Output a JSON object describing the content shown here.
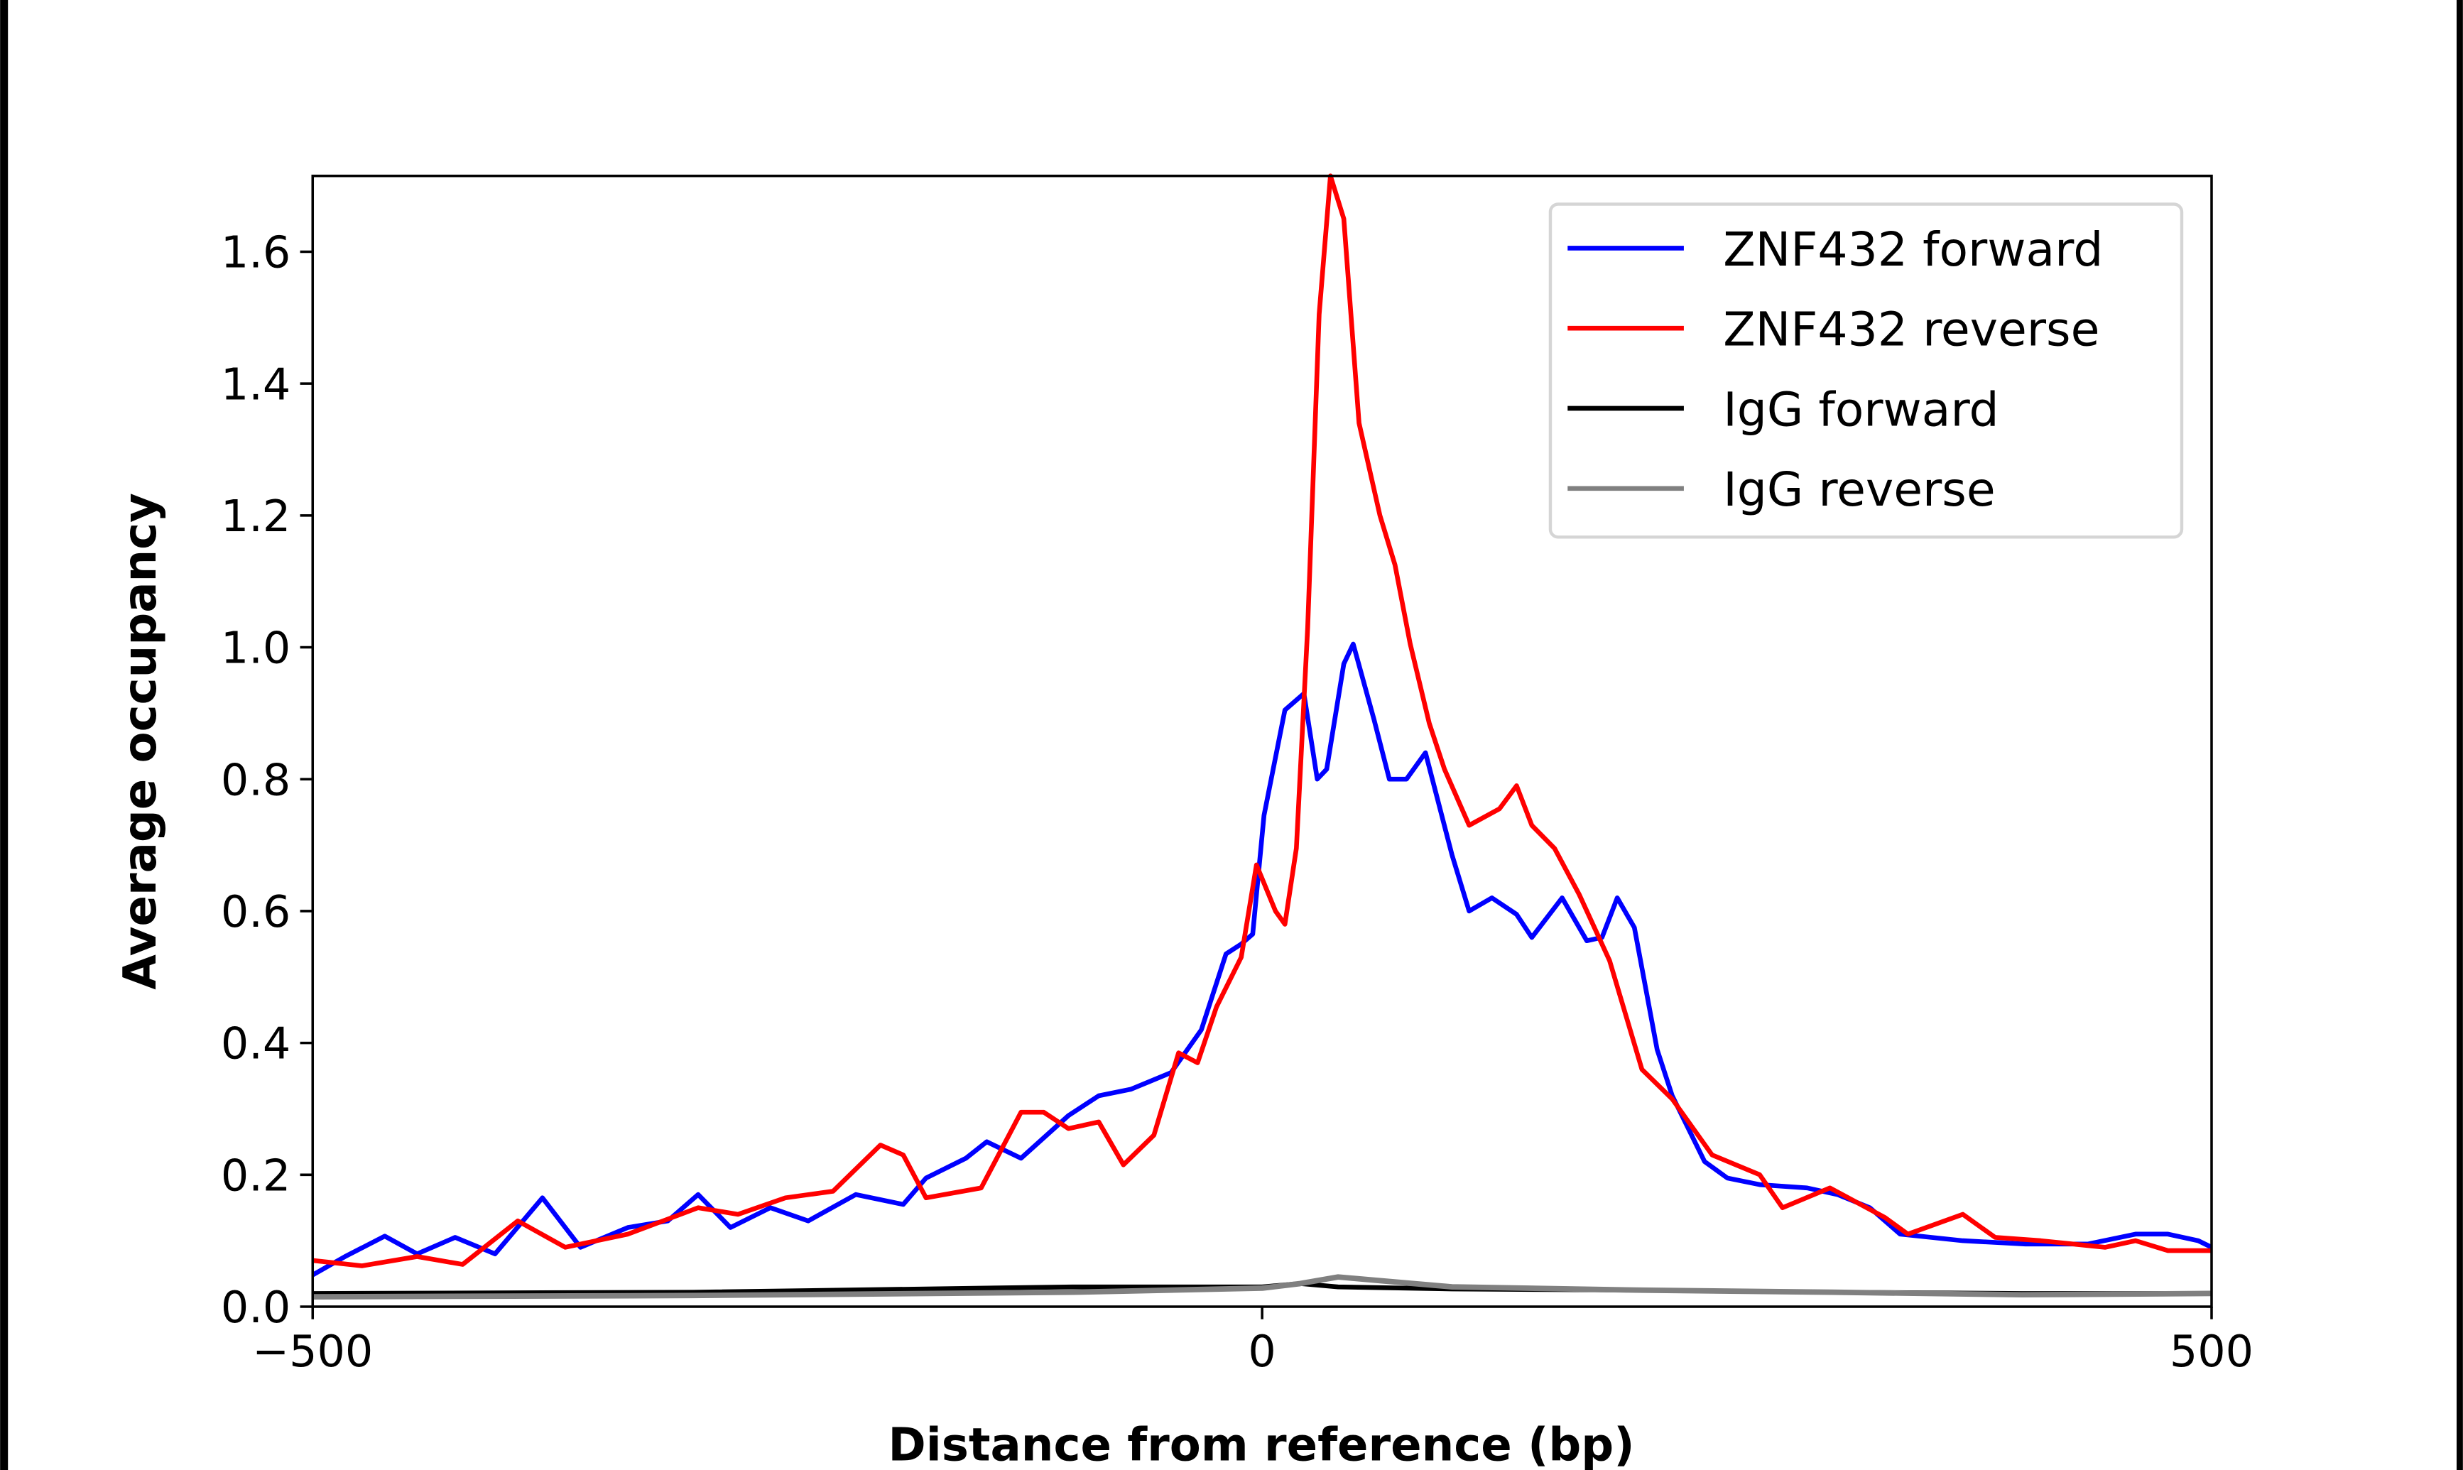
{
  "chart_data": {
    "type": "line",
    "title": "",
    "xlabel": "Distance from reference (bp)",
    "ylabel": "Average occupancy",
    "xlim": [
      -500,
      500
    ],
    "ylim": [
      0,
      1.715
    ],
    "xticks": [
      -500,
      0,
      500
    ],
    "xtick_labels": [
      "−500",
      "0",
      "500"
    ],
    "yticks": [
      0.0,
      0.2,
      0.4,
      0.6,
      0.8,
      1.0,
      1.2,
      1.4,
      1.6
    ],
    "ytick_labels": [
      "0.0",
      "0.2",
      "0.4",
      "0.6",
      "0.8",
      "1.0",
      "1.2",
      "1.4",
      "1.6"
    ],
    "grid": false,
    "legend_position": "top-right",
    "series": [
      {
        "name": "ZNF432 forward",
        "color": "#0000ff",
        "x": [
          -500,
          -483,
          -462,
          -445,
          -425,
          -404,
          -379,
          -359,
          -334,
          -313,
          -297,
          -280,
          -259,
          -239,
          -214,
          -189,
          -177,
          -156,
          -145,
          -127,
          -102,
          -86,
          -69,
          -48,
          -32,
          -19,
          -11,
          -5,
          1,
          12,
          22,
          29,
          34,
          43,
          48,
          59,
          67,
          76,
          86,
          100,
          109,
          121,
          134,
          142,
          158,
          171,
          179,
          187,
          196,
          208,
          216,
          233,
          245,
          262,
          287,
          303,
          320,
          336,
          369,
          402,
          435,
          460,
          477,
          493,
          500
        ],
        "y": [
          0.048,
          0.076,
          0.107,
          0.08,
          0.105,
          0.08,
          0.165,
          0.09,
          0.12,
          0.13,
          0.17,
          0.12,
          0.15,
          0.13,
          0.17,
          0.155,
          0.195,
          0.225,
          0.25,
          0.225,
          0.29,
          0.32,
          0.33,
          0.355,
          0.42,
          0.535,
          0.55,
          0.565,
          0.745,
          0.905,
          0.93,
          0.8,
          0.815,
          0.975,
          1.005,
          0.89,
          0.8,
          0.8,
          0.84,
          0.685,
          0.6,
          0.62,
          0.595,
          0.56,
          0.62,
          0.555,
          0.56,
          0.62,
          0.575,
          0.39,
          0.32,
          0.22,
          0.195,
          0.185,
          0.18,
          0.17,
          0.15,
          0.11,
          0.1,
          0.095,
          0.095,
          0.11,
          0.11,
          0.1,
          0.09
        ]
      },
      {
        "name": "ZNF432 reverse",
        "color": "#ff0000",
        "x": [
          -500,
          -474,
          -445,
          -421,
          -392,
          -367,
          -334,
          -297,
          -276,
          -251,
          -226,
          -201,
          -189,
          -177,
          -148,
          -127,
          -115,
          -102,
          -86,
          -73,
          -57,
          -44,
          -34,
          -24,
          -11,
          -3,
          7,
          12,
          18,
          24,
          30,
          36,
          43,
          51,
          62,
          70,
          78,
          88,
          96,
          109,
          125,
          134,
          142,
          154,
          167,
          183,
          200,
          216,
          237,
          262,
          274,
          299,
          328,
          340,
          369,
          386,
          410,
          444,
          460,
          477,
          500
        ],
        "y": [
          0.07,
          0.062,
          0.076,
          0.064,
          0.13,
          0.09,
          0.11,
          0.15,
          0.14,
          0.165,
          0.175,
          0.245,
          0.23,
          0.165,
          0.18,
          0.295,
          0.295,
          0.27,
          0.28,
          0.215,
          0.26,
          0.385,
          0.37,
          0.455,
          0.53,
          0.67,
          0.6,
          0.58,
          0.695,
          1.03,
          1.505,
          1.715,
          1.65,
          1.34,
          1.2,
          1.125,
          1.005,
          0.885,
          0.815,
          0.73,
          0.755,
          0.79,
          0.73,
          0.695,
          0.625,
          0.525,
          0.36,
          0.315,
          0.23,
          0.2,
          0.15,
          0.18,
          0.135,
          0.11,
          0.14,
          0.105,
          0.1,
          0.09,
          0.1,
          0.085,
          0.085
        ]
      },
      {
        "name": "IgG forward",
        "color": "#000000",
        "x": [
          -500,
          -300,
          -100,
          0,
          20,
          40,
          100,
          200,
          300,
          400,
          500
        ],
        "y": [
          0.02,
          0.022,
          0.03,
          0.03,
          0.035,
          0.03,
          0.027,
          0.025,
          0.022,
          0.02,
          0.02
        ]
      },
      {
        "name": "IgG reverse",
        "color": "#808080",
        "x": [
          -500,
          -300,
          -100,
          0,
          20,
          40,
          60,
          100,
          200,
          300,
          400,
          500
        ],
        "y": [
          0.015,
          0.017,
          0.022,
          0.028,
          0.035,
          0.045,
          0.04,
          0.03,
          0.025,
          0.022,
          0.018,
          0.02
        ]
      }
    ]
  }
}
